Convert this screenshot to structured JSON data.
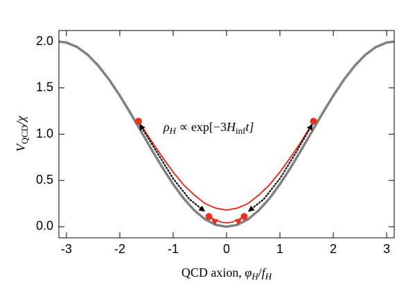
{
  "chart_data": {
    "type": "line",
    "xlim": [
      -3.1416,
      3.1416
    ],
    "ylim": [
      -0.12,
      2.12
    ],
    "xticks": [
      -3,
      -2,
      -1,
      0,
      1,
      2,
      3
    ],
    "yticks": [
      {
        "value": 0,
        "label": "0.0"
      },
      0.5,
      {
        "value": 1,
        "label": "1.0"
      },
      1.5,
      {
        "value": 2,
        "label": "2.0"
      }
    ],
    "xlabel": {
      "main": "QCD axion, ",
      "var1": "φ",
      "sub1": "H",
      "mid": "/",
      "var2": "f",
      "sub2": "H"
    },
    "ylabel": {
      "main": "V",
      "sub": "QCD",
      "rest": "/χ"
    },
    "annotation": {
      "var": "ρ",
      "sub": "H",
      "mid": " ∝ exp[−3",
      "var2": "H",
      "sub2": "inf",
      "end": "t]"
    },
    "series": [
      {
        "color": "#808080",
        "style": "solid",
        "width": 3.5,
        "x": [
          -3.1416,
          -3.0,
          -2.8,
          -2.6,
          -2.4,
          -2.2,
          -2.0,
          -1.8,
          -1.6,
          -1.4,
          -1.2,
          -1.0,
          -0.8,
          -0.6,
          -0.4,
          -0.2,
          0,
          0.2,
          0.4,
          0.6,
          0.8,
          1.0,
          1.2,
          1.4,
          1.6,
          1.8,
          2.0,
          2.2,
          2.4,
          2.6,
          2.8,
          3.0,
          3.1416
        ],
        "values": [
          2.0,
          1.99,
          1.9422,
          1.8569,
          1.7374,
          1.5885,
          1.4161,
          1.2272,
          1.0292,
          0.83,
          0.6376,
          0.4597,
          0.3033,
          0.1747,
          0.0789,
          0.0199,
          0,
          0.0199,
          0.0789,
          0.1747,
          0.3033,
          0.4597,
          0.6376,
          0.83,
          1.0292,
          1.2272,
          1.4161,
          1.5885,
          1.7374,
          1.8569,
          1.9422,
          1.99,
          2.0
        ]
      },
      {
        "color": "#e8321e",
        "style": "solid",
        "width": 2,
        "x": [
          -1.65,
          -1.4,
          -1.2,
          -1.0,
          -0.8,
          -0.6,
          -0.4,
          -0.2,
          0,
          0.2,
          0.4,
          0.6,
          0.8,
          1.0,
          1.2,
          1.4,
          1.63
        ],
        "values": [
          1.14,
          0.92,
          0.75,
          0.59,
          0.45,
          0.34,
          0.25,
          0.2,
          0.18,
          0.2,
          0.25,
          0.34,
          0.45,
          0.59,
          0.75,
          0.92,
          1.14
        ]
      },
      {
        "color": "#e8321e",
        "style": "solid",
        "width": 2,
        "x": [
          -0.33,
          -0.2,
          -0.1,
          0,
          0.1,
          0.2,
          0.33
        ],
        "values": [
          0.11,
          0.07,
          0.05,
          0.04,
          0.05,
          0.07,
          0.11
        ]
      },
      {
        "color": "#000000",
        "style": "dotted",
        "width": 2.2,
        "arrows": true,
        "x": [
          -1.62,
          -1.3,
          -1.0,
          -0.7,
          -0.42
        ],
        "values": [
          1.1,
          0.8,
          0.52,
          0.3,
          0.17
        ]
      },
      {
        "color": "#000000",
        "style": "dotted",
        "width": 2.2,
        "arrows": true,
        "x": [
          1.6,
          1.3,
          1.0,
          0.7,
          0.42
        ],
        "values": [
          1.1,
          0.8,
          0.52,
          0.3,
          0.17
        ]
      }
    ],
    "points": {
      "color": "#e8321e",
      "x": [
        -1.65,
        1.63,
        -0.33,
        0.33
      ],
      "values": [
        1.14,
        1.14,
        0.11,
        0.11
      ]
    },
    "triangles": {
      "color": "#e8321e",
      "x": [
        -0.22,
        0.22
      ],
      "values": [
        0.05,
        0.05
      ]
    }
  }
}
